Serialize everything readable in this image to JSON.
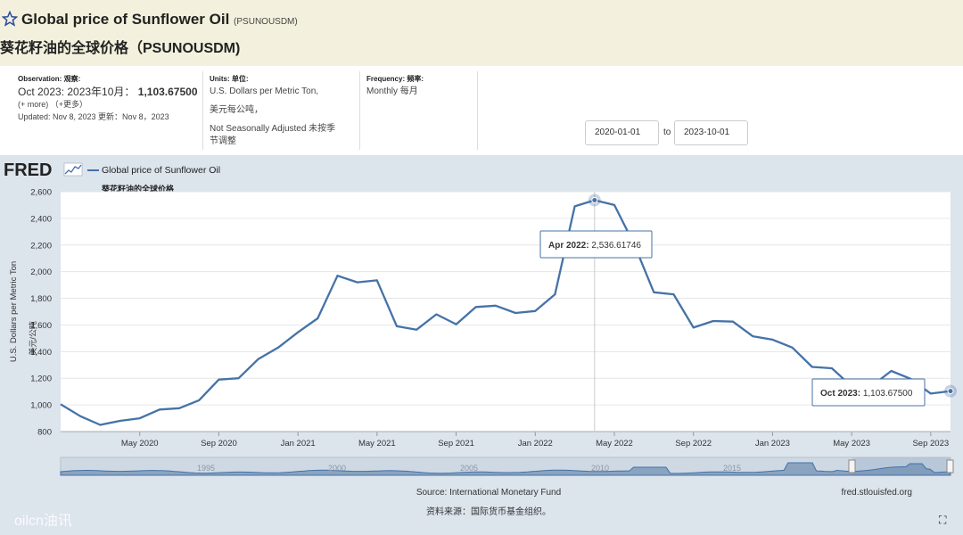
{
  "header": {
    "title": "Global price of Sunflower Oil",
    "series_id": "(PSUNOUSDM)",
    "cn_title": "葵花籽油的全球价格（PSUNOUSDM)"
  },
  "meta": {
    "observation_label": "Observation: 观察:",
    "observation_date": "Oct 2023: 2023年10月：",
    "observation_value": "1,103.67500",
    "more": "(+ more)  （+更多）",
    "updated": "Updated: Nov 8, 2023  更新：Nov 8，2023",
    "units_label": "Units: 单位:",
    "units": "U.S. Dollars per Metric Ton,",
    "units_cn": "美元每公吨，",
    "seasonal": "Not Seasonally Adjusted  未按季",
    "seasonal_cn": "节调整",
    "frequency_label": "Frequency: 频率:",
    "frequency": "Monthly  每月",
    "date_from": "2020-01-01",
    "date_to_word": "to",
    "date_to": "2023-10-01"
  },
  "legend": {
    "logo": "FRED",
    "series": "Global price of Sunflower Oil",
    "series_cn": "葵花籽油的全球价格"
  },
  "footer": {
    "source": "Source: International Monetary Fund",
    "source_cn": "资料来源：国际货币基金组织。",
    "site": "fred.stlouisfed.org",
    "watermark": "oilcn油讯"
  },
  "chart_data": {
    "type": "line",
    "ylabel": "U.S. Dollars per Metric Ton",
    "ylabel_cn": "美元/公吨",
    "ylim": [
      800,
      2600
    ],
    "yticks": [
      800,
      1000,
      1200,
      1400,
      1600,
      1800,
      2000,
      2200,
      2400,
      2600
    ],
    "ytick_labels": [
      "800",
      "1,000",
      "1,200",
      "1,400",
      "1,600",
      "1,800",
      "2,000",
      "2,200",
      "2,400",
      "2,600"
    ],
    "grid": true,
    "xticks": [
      {
        "label": "May 2020",
        "index": 4
      },
      {
        "label": "Sep 2020",
        "index": 8
      },
      {
        "label": "Jan 2021",
        "index": 12
      },
      {
        "label": "May 2021",
        "index": 16
      },
      {
        "label": "Sep 2021",
        "index": 20
      },
      {
        "label": "Jan 2022",
        "index": 24
      },
      {
        "label": "May 2022",
        "index": 28
      },
      {
        "label": "Sep 2022",
        "index": 32
      },
      {
        "label": "Jan 2023",
        "index": 36
      },
      {
        "label": "May 2023",
        "index": 40
      },
      {
        "label": "Sep 2023",
        "index": 44
      }
    ],
    "x": [
      "2020-01",
      "2020-02",
      "2020-03",
      "2020-04",
      "2020-05",
      "2020-06",
      "2020-07",
      "2020-08",
      "2020-09",
      "2020-10",
      "2020-11",
      "2020-12",
      "2021-01",
      "2021-02",
      "2021-03",
      "2021-04",
      "2021-05",
      "2021-06",
      "2021-07",
      "2021-08",
      "2021-09",
      "2021-10",
      "2021-11",
      "2021-12",
      "2022-01",
      "2022-02",
      "2022-03",
      "2022-04",
      "2022-05",
      "2022-06",
      "2022-07",
      "2022-08",
      "2022-09",
      "2022-10",
      "2022-11",
      "2022-12",
      "2023-01",
      "2023-02",
      "2023-03",
      "2023-04",
      "2023-05",
      "2023-06",
      "2023-07",
      "2023-08",
      "2023-09",
      "2023-10"
    ],
    "values": [
      1005,
      915,
      850,
      880,
      900,
      965,
      975,
      1035,
      1190,
      1200,
      1345,
      1430,
      1545,
      1650,
      1970,
      1920,
      1935,
      1590,
      1565,
      1680,
      1605,
      1735,
      1745,
      1690,
      1705,
      1830,
      2490,
      2536.61746,
      2500,
      2205,
      1845,
      1830,
      1580,
      1630,
      1625,
      1515,
      1490,
      1430,
      1285,
      1275,
      1140,
      1140,
      1255,
      1195,
      1085,
      1103.675
    ],
    "tooltips": [
      {
        "label": "Apr 2022:",
        "value": "2,536.61746",
        "index": 27
      },
      {
        "label": "Oct 2023:",
        "value": "1,103.67500",
        "index": 45
      }
    ],
    "navigator_labels": [
      "1995",
      "2000",
      "2005",
      "2010",
      "2015"
    ]
  },
  "colors": {
    "line": "#4572a7",
    "plot_bg": "#ffffff",
    "chart_bg": "#dce4ec",
    "header_bg": "#f3f1dd"
  }
}
